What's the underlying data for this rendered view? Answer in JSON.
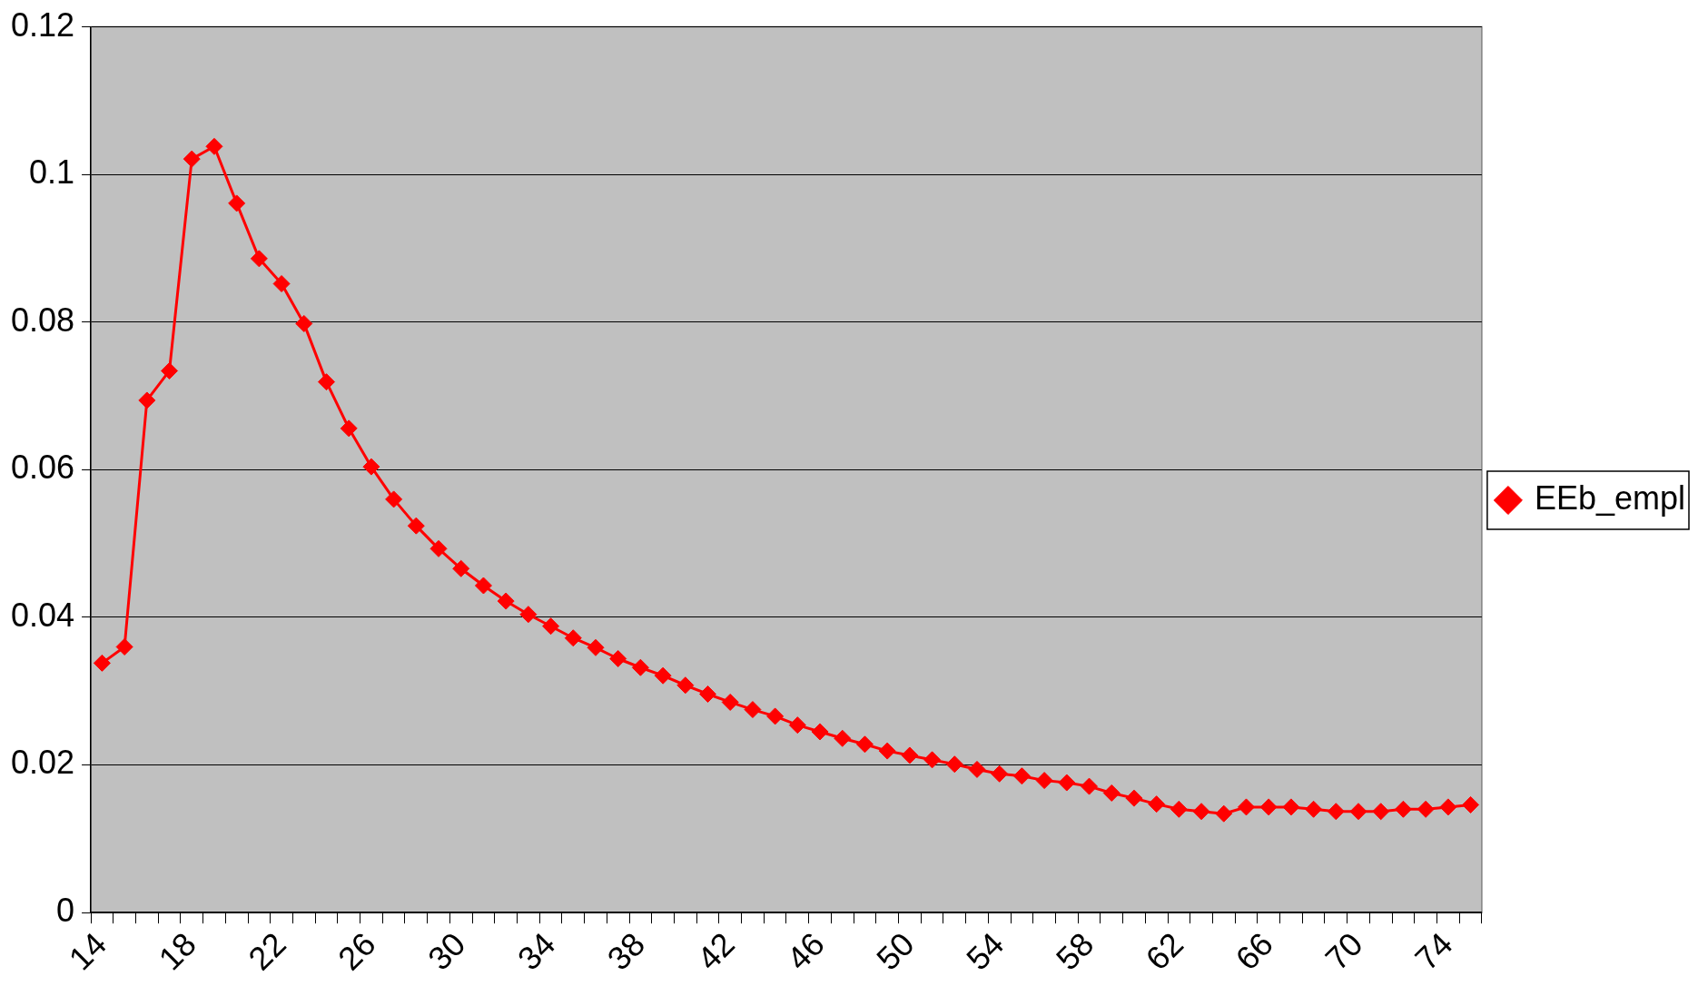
{
  "chart_data": {
    "type": "line",
    "categories": [
      "14",
      null,
      null,
      null,
      "18",
      null,
      null,
      null,
      "22",
      null,
      null,
      null,
      "26",
      null,
      null,
      null,
      "30",
      null,
      null,
      null,
      "34",
      null,
      null,
      null,
      "38",
      null,
      null,
      null,
      "42",
      null,
      null,
      null,
      "46",
      null,
      null,
      null,
      "50",
      null,
      null,
      null,
      "54",
      null,
      null,
      null,
      "58",
      null,
      null,
      null,
      "62",
      null,
      null,
      null,
      "66",
      null,
      null,
      null,
      "70",
      null,
      null,
      null,
      "74",
      null
    ],
    "series": [
      {
        "name": "EEb_empl",
        "color": "#ff0000",
        "values": [
          0.0338,
          0.036,
          0.0694,
          0.0734,
          0.1021,
          0.1038,
          0.0961,
          0.0886,
          0.0852,
          0.0798,
          0.0719,
          0.0656,
          0.0604,
          0.056,
          0.0524,
          0.0493,
          0.0466,
          0.0443,
          0.0422,
          0.0404,
          0.0388,
          0.0372,
          0.0359,
          0.0344,
          0.0332,
          0.0321,
          0.0308,
          0.0296,
          0.0285,
          0.0275,
          0.0266,
          0.0254,
          0.0245,
          0.0236,
          0.0228,
          0.0219,
          0.0213,
          0.0207,
          0.0201,
          0.0194,
          0.0188,
          0.0185,
          0.0179,
          0.0176,
          0.0171,
          0.0162,
          0.0155,
          0.0147,
          0.014,
          0.0137,
          0.0134,
          0.0143,
          0.0143,
          0.0143,
          0.014,
          0.0137,
          0.0137,
          0.0137,
          0.014,
          0.014,
          0.0143,
          0.0146
        ]
      }
    ],
    "ylim": [
      0,
      0.12
    ],
    "yticks": [
      0,
      0.02,
      0.04,
      0.06,
      0.08,
      0.1,
      0.12
    ],
    "grid": "y",
    "legend": "right",
    "marker": "diamond",
    "line_style": "solid"
  }
}
